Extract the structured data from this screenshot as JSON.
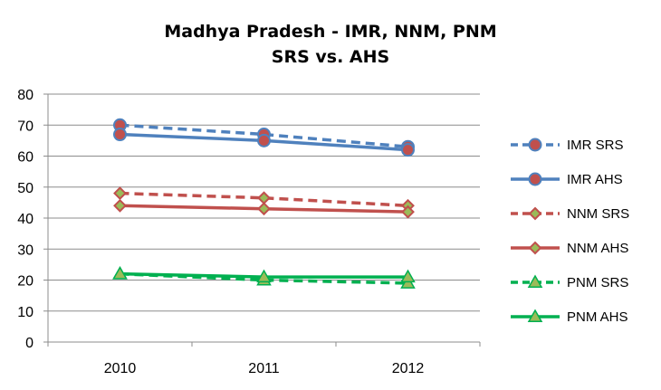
{
  "chart_data": {
    "type": "line",
    "title": "Madhya Pradesh - IMR, NNM, PNM",
    "subtitle": "SRS vs. AHS",
    "categories": [
      "2010",
      "2011",
      "2012"
    ],
    "ylim": [
      0,
      80
    ],
    "yticks": [
      0,
      10,
      20,
      30,
      40,
      50,
      60,
      70,
      80
    ],
    "grid": "horizontal",
    "legend_position": "right",
    "series": [
      {
        "name": "IMR SRS",
        "values": [
          70,
          67,
          63
        ],
        "color": "#4F81BD",
        "dash": true,
        "marker": "circle"
      },
      {
        "name": "IMR AHS",
        "values": [
          67,
          65,
          62
        ],
        "color": "#4F81BD",
        "dash": false,
        "marker": "circle"
      },
      {
        "name": "NNM SRS",
        "values": [
          48,
          46.5,
          44
        ],
        "color": "#C0504D",
        "dash": true,
        "marker": "diamond"
      },
      {
        "name": "NNM AHS",
        "values": [
          44,
          43,
          42
        ],
        "color": "#C0504D",
        "dash": false,
        "marker": "diamond"
      },
      {
        "name": "PNM SRS",
        "values": [
          22,
          20,
          19
        ],
        "color": "#00B050",
        "dash": true,
        "marker": "triangle"
      },
      {
        "name": "PNM AHS",
        "values": [
          22,
          21,
          21
        ],
        "color": "#00B050",
        "dash": false,
        "marker": "triangle"
      }
    ],
    "marker_colors": {
      "circle_fill": "#C0504D",
      "diamond_fill": "#9BBB59",
      "triangle_fill": "#9BBB59"
    }
  }
}
